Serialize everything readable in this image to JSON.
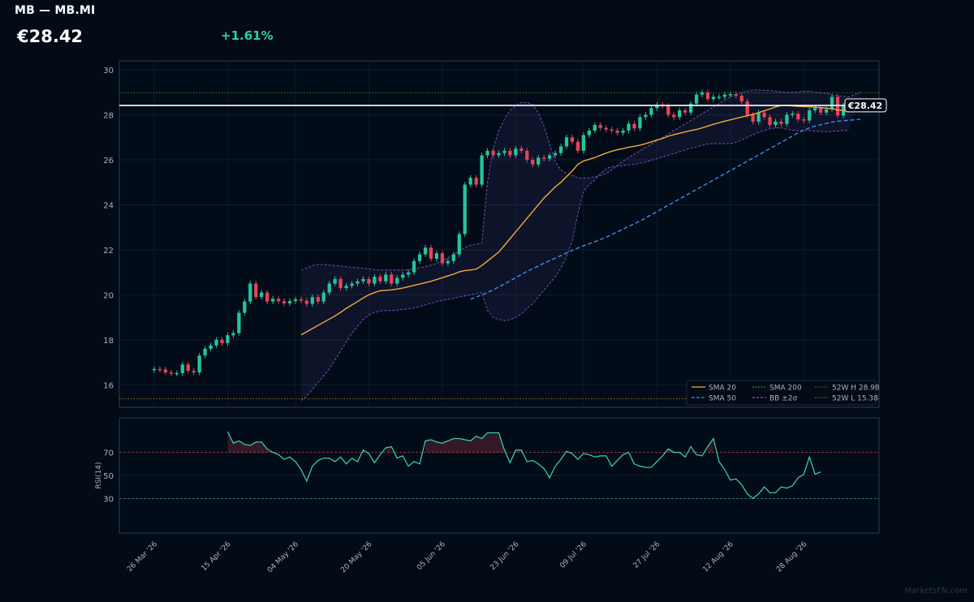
{
  "header": {
    "title": "MB — MB.MI",
    "price": "€28.42",
    "change": "+1.61%"
  },
  "watermark": "MarketsFN.com",
  "colors": {
    "background": "#020b16",
    "panel_border": "#2a3a58",
    "up": "#26c49c",
    "down": "#e8435a",
    "sma20": "#f5a83a",
    "sma50": "#3d8fe6",
    "bb": "#8a4fc4",
    "rsi": "#3ad8b0",
    "hi52": "#3d7a2a",
    "lo52": "#8a6a2a"
  },
  "chart_data": {
    "type": "candlestick",
    "x_ticks": [
      "26 Mar '26",
      "15 Apr '26",
      "04 May '26",
      "20 May '26",
      "05 Jun '26",
      "23 Jun '26",
      "09 Jul '26",
      "27 Jul '26",
      "12 Aug '26",
      "28 Aug '26"
    ],
    "price_axis": {
      "ylim": [
        15.0,
        30.4
      ],
      "ticks": [
        16,
        18,
        20,
        22,
        24,
        26,
        28,
        30
      ]
    },
    "last_price": 28.42,
    "last_price_label": "€28.42",
    "week52_high": 28.98,
    "week52_low": 15.38,
    "close": [
      16.7,
      16.68,
      16.55,
      16.5,
      16.52,
      16.9,
      16.62,
      16.55,
      17.3,
      17.6,
      17.75,
      18.0,
      17.85,
      18.2,
      18.3,
      19.2,
      19.7,
      20.5,
      19.9,
      20.1,
      19.7,
      19.82,
      19.72,
      19.62,
      19.72,
      19.8,
      19.74,
      19.6,
      19.9,
      19.7,
      20.1,
      20.5,
      20.7,
      20.3,
      20.4,
      20.5,
      20.6,
      20.7,
      20.5,
      20.8,
      20.6,
      20.9,
      20.5,
      20.75,
      20.9,
      21.0,
      21.5,
      21.8,
      22.1,
      21.6,
      21.85,
      21.4,
      21.5,
      21.8,
      22.7,
      24.9,
      25.2,
      24.9,
      26.2,
      26.4,
      26.2,
      26.3,
      26.4,
      26.2,
      26.5,
      26.4,
      26.0,
      25.8,
      26.1,
      26.05,
      26.2,
      26.3,
      26.6,
      27.0,
      26.8,
      26.4,
      27.1,
      27.3,
      27.55,
      27.42,
      27.35,
      27.3,
      27.2,
      27.3,
      27.6,
      27.4,
      27.9,
      28.0,
      28.3,
      28.45,
      28.4,
      28.0,
      27.9,
      28.2,
      28.1,
      28.5,
      28.9,
      29.0,
      28.7,
      28.8,
      28.8,
      28.9,
      28.92,
      28.85,
      28.6,
      28.0,
      27.7,
      28.1,
      27.9,
      27.55,
      27.7,
      27.6,
      28.0,
      28.05,
      27.8,
      27.75,
      28.2,
      28.3,
      28.1,
      28.25,
      28.8,
      27.97,
      28.42
    ],
    "series": [
      {
        "name": "SMA 20",
        "start_index": 26,
        "values": [
          18.22,
          18.36,
          18.5,
          18.64,
          18.78,
          18.92,
          19.06,
          19.22,
          19.4,
          19.55,
          19.7,
          19.86,
          20.0,
          20.1,
          20.18,
          20.2,
          20.22,
          20.26,
          20.3,
          20.36,
          20.42,
          20.48,
          20.54,
          20.6,
          20.68,
          20.76,
          20.84,
          20.92,
          21.02,
          21.08,
          21.1,
          21.14,
          21.3,
          21.5,
          21.7,
          21.9,
          22.2,
          22.5,
          22.8,
          23.1,
          23.4,
          23.7,
          24.0,
          24.3,
          24.55,
          24.8,
          25.0,
          25.25,
          25.5,
          25.8,
          25.95,
          26.02,
          26.1,
          26.2,
          26.3,
          26.38,
          26.45,
          26.5,
          26.56,
          26.6,
          26.65,
          26.72,
          26.8,
          26.88,
          26.95,
          27.05,
          27.12,
          27.18,
          27.24,
          27.3,
          27.35,
          27.42,
          27.5,
          27.58,
          27.65,
          27.72,
          27.78,
          27.84,
          27.9,
          27.96,
          28.02,
          28.1,
          28.18,
          28.26,
          28.35,
          28.42,
          28.42,
          28.4,
          28.38,
          28.37,
          28.36,
          28.34,
          28.32,
          28.3,
          28.27,
          28.22,
          28.2,
          28.18,
          28.18,
          28.18
        ]
      },
      {
        "name": "SMA 50",
        "start_index": 56,
        "values": [
          19.8,
          19.9,
          20.0,
          20.1,
          20.22,
          20.35,
          20.48,
          20.62,
          20.76,
          20.9,
          21.04,
          21.16,
          21.28,
          21.4,
          21.52,
          21.63,
          21.74,
          21.86,
          21.98,
          22.08,
          22.18,
          22.27,
          22.36,
          22.46,
          22.56,
          22.68,
          22.8,
          22.92,
          23.04,
          23.16,
          23.28,
          23.42,
          23.56,
          23.7,
          23.84,
          23.98,
          24.12,
          24.26,
          24.4,
          24.54,
          24.68,
          24.82,
          24.96,
          25.1,
          25.24,
          25.38,
          25.52,
          25.66,
          25.8,
          25.94,
          26.08,
          26.22,
          26.36,
          26.5,
          26.64,
          26.78,
          26.92,
          27.06,
          27.2,
          27.32,
          27.42,
          27.5,
          27.56,
          27.62,
          27.68,
          27.72,
          27.74,
          27.76,
          27.78,
          27.8
        ]
      },
      {
        "name": "BB upper",
        "start_index": 26,
        "values": [
          21.1,
          21.2,
          21.3,
          21.35,
          21.35,
          21.32,
          21.3,
          21.28,
          21.25,
          21.22,
          21.2,
          21.18,
          21.15,
          21.12,
          21.1,
          21.1,
          21.1,
          21.1,
          21.1,
          21.12,
          21.15,
          21.2,
          21.25,
          21.32,
          21.4,
          21.5,
          21.65,
          21.8,
          21.95,
          22.1,
          22.2,
          22.25,
          22.3,
          25.0,
          26.5,
          27.3,
          27.8,
          28.2,
          28.4,
          28.55,
          28.55,
          28.45,
          28.1,
          27.5,
          26.7,
          25.9,
          25.55,
          25.4,
          25.3,
          25.2,
          25.18,
          25.2,
          25.25,
          25.3,
          25.4,
          25.55,
          25.75,
          25.95,
          26.1,
          26.25,
          26.4,
          26.55,
          26.7,
          26.85,
          27.0,
          27.15,
          27.3,
          27.45,
          27.6,
          27.75,
          27.9,
          28.05,
          28.2,
          28.35,
          28.5,
          28.65,
          28.8,
          28.9,
          29.0,
          29.05,
          29.1,
          29.1,
          29.1,
          29.08,
          29.05,
          29.02,
          29.0,
          29.0,
          29.02,
          29.05,
          29.05,
          29.0,
          28.98,
          28.95,
          28.9,
          28.85,
          28.82,
          28.8,
          28.9,
          29.0
        ]
      },
      {
        "name": "BB lower",
        "start_index": 26,
        "values": [
          15.3,
          15.5,
          15.8,
          16.1,
          16.4,
          16.7,
          17.1,
          17.5,
          17.9,
          18.3,
          18.6,
          18.9,
          19.1,
          19.22,
          19.28,
          19.3,
          19.3,
          19.32,
          19.35,
          19.38,
          19.42,
          19.48,
          19.55,
          19.62,
          19.7,
          19.75,
          19.8,
          19.85,
          19.9,
          19.95,
          20.0,
          20.05,
          20.1,
          19.3,
          19.0,
          18.9,
          18.85,
          18.9,
          19.0,
          19.15,
          19.4,
          19.6,
          19.9,
          20.2,
          20.5,
          20.8,
          21.2,
          21.7,
          22.4,
          23.6,
          24.6,
          24.9,
          25.1,
          25.4,
          25.6,
          25.7,
          25.72,
          25.75,
          25.78,
          25.8,
          25.85,
          25.9,
          25.98,
          26.05,
          26.12,
          26.2,
          26.28,
          26.36,
          26.44,
          26.52,
          26.58,
          26.64,
          26.7,
          26.72,
          26.72,
          26.72,
          26.72,
          26.78,
          26.88,
          27.0,
          27.12,
          27.22,
          27.3,
          27.38,
          27.42,
          27.42,
          27.36,
          27.32,
          27.3,
          27.3,
          27.3,
          27.28,
          27.26,
          27.25,
          27.26,
          27.28,
          27.3,
          27.3
        ]
      }
    ],
    "legend": [
      "SMA 20",
      "SMA 50",
      "SMA 200",
      "BB ±2σ",
      "52W H 28.98",
      "52W L 15.38"
    ],
    "legend_position": "bottom-right",
    "rsi": {
      "ylabel": "RSI(14)",
      "ticks": [
        30,
        50,
        70
      ],
      "ylim": [
        0,
        100
      ],
      "overbought": 70,
      "oversold": 30,
      "start_index": 13,
      "values": [
        88,
        78,
        80,
        77,
        76,
        79,
        79,
        73,
        70,
        68,
        64,
        66,
        62,
        55,
        45,
        58,
        63,
        65,
        65,
        62,
        66,
        60,
        65,
        62,
        72,
        69,
        61,
        68,
        74,
        75,
        65,
        67,
        58,
        62,
        60,
        80,
        81,
        79,
        78,
        80,
        82,
        82,
        81,
        80,
        84,
        82,
        87,
        87,
        87,
        72,
        61,
        72,
        72,
        62,
        63,
        60,
        56,
        48,
        58,
        64,
        71,
        69,
        64,
        69,
        68,
        66,
        67,
        67,
        58,
        63,
        68,
        70,
        60,
        58,
        57,
        57,
        62,
        67,
        73,
        70,
        70,
        66,
        75,
        68,
        67,
        75,
        82,
        62,
        55,
        46,
        47,
        42,
        34,
        30,
        34,
        40,
        35,
        35,
        40,
        39,
        41,
        48,
        51,
        66,
        51,
        53
      ]
    }
  }
}
